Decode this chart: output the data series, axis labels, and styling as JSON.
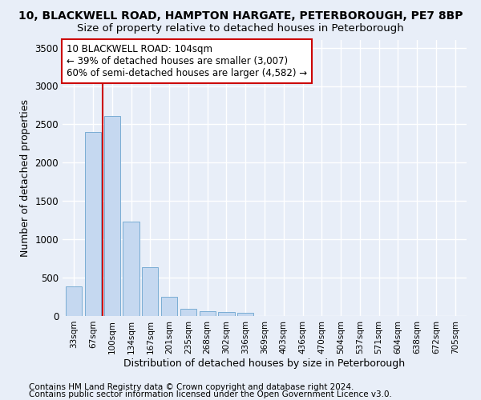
{
  "title1": "10, BLACKWELL ROAD, HAMPTON HARGATE, PETERBOROUGH, PE7 8BP",
  "title2": "Size of property relative to detached houses in Peterborough",
  "xlabel": "Distribution of detached houses by size in Peterborough",
  "ylabel": "Number of detached properties",
  "categories": [
    "33sqm",
    "67sqm",
    "100sqm",
    "134sqm",
    "167sqm",
    "201sqm",
    "235sqm",
    "268sqm",
    "302sqm",
    "336sqm",
    "369sqm",
    "403sqm",
    "436sqm",
    "470sqm",
    "504sqm",
    "537sqm",
    "571sqm",
    "604sqm",
    "638sqm",
    "672sqm",
    "705sqm"
  ],
  "values": [
    390,
    2400,
    2610,
    1230,
    640,
    255,
    95,
    60,
    55,
    40,
    0,
    0,
    0,
    0,
    0,
    0,
    0,
    0,
    0,
    0,
    0
  ],
  "bar_color": "#c5d8f0",
  "bar_edge_color": "#7aadd4",
  "annotation_line1": "10 BLACKWELL ROAD: 104sqm",
  "annotation_line2": "← 39% of detached houses are smaller (3,007)",
  "annotation_line3": "60% of semi-detached houses are larger (4,582) →",
  "annotation_box_color": "#ffffff",
  "annotation_box_edge_color": "#cc0000",
  "vline_color": "#cc0000",
  "vline_x": 1.5,
  "ylim": [
    0,
    3600
  ],
  "yticks": [
    0,
    500,
    1000,
    1500,
    2000,
    2500,
    3000,
    3500
  ],
  "footer_line1": "Contains HM Land Registry data © Crown copyright and database right 2024.",
  "footer_line2": "Contains public sector information licensed under the Open Government Licence v3.0.",
  "background_color": "#e8eef8",
  "grid_color": "#ffffff",
  "title1_fontsize": 10,
  "title2_fontsize": 9.5,
  "xlabel_fontsize": 9,
  "ylabel_fontsize": 9,
  "annotation_fontsize": 8.5,
  "footer_fontsize": 7.5
}
